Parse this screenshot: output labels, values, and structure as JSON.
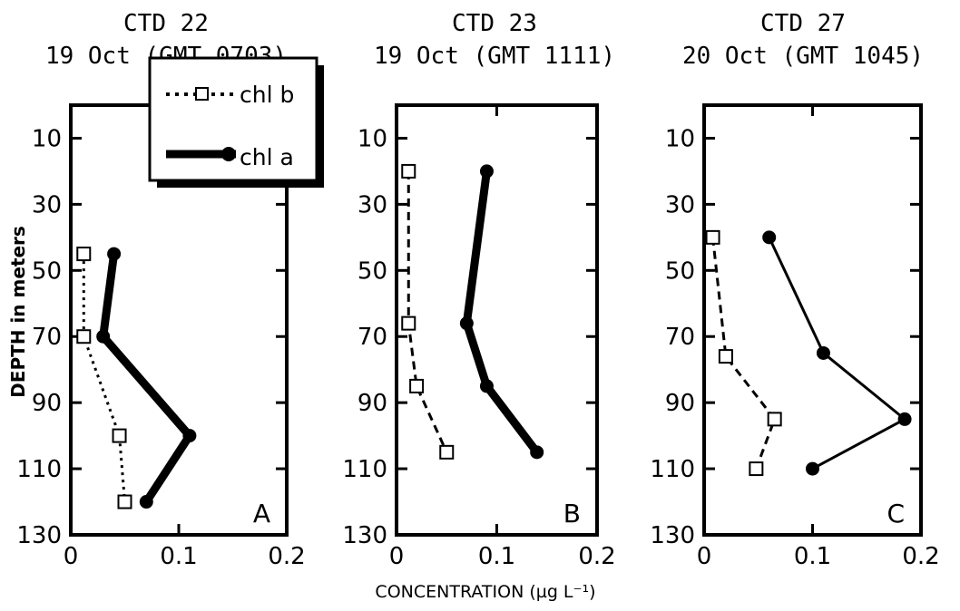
{
  "figure": {
    "ylabel": "DEPTH in meters",
    "xlabel": "CONCENTRATION  (µg L⁻¹)"
  },
  "legend": {
    "items": [
      {
        "label": "chl b",
        "style": "dotted-square"
      },
      {
        "label": "chl a",
        "style": "thick-circle"
      }
    ]
  },
  "chart_data": [
    {
      "type": "line",
      "panel_label": "A",
      "title": [
        "CTD 22",
        "19 Oct (GMT 0703)"
      ],
      "xlim": [
        0,
        0.2
      ],
      "ylim": [
        130,
        0
      ],
      "xticks": [
        "0",
        "0.1",
        "0.2"
      ],
      "yticks": [
        "10",
        "30",
        "50",
        "70",
        "90",
        "110",
        "130"
      ],
      "series": [
        {
          "name": "chl b",
          "x": [
            0.012,
            0.012,
            0.045,
            0.05
          ],
          "y": [
            45,
            70,
            100,
            120
          ]
        },
        {
          "name": "chl a",
          "x": [
            0.04,
            0.03,
            0.11,
            0.07
          ],
          "y": [
            45,
            70,
            100,
            120
          ]
        }
      ]
    },
    {
      "type": "line",
      "panel_label": "B",
      "title": [
        "CTD 23",
        "19 Oct (GMT 1111)"
      ],
      "xlim": [
        0,
        0.2
      ],
      "ylim": [
        130,
        0
      ],
      "xticks": [
        "0",
        "0.1",
        "0.2"
      ],
      "yticks": [
        "10",
        "30",
        "50",
        "70",
        "90",
        "110",
        "130"
      ],
      "series": [
        {
          "name": "chl b",
          "x": [
            0.012,
            0.012,
            0.02,
            0.05
          ],
          "y": [
            20,
            66,
            85,
            105
          ]
        },
        {
          "name": "chl a",
          "x": [
            0.09,
            0.07,
            0.09,
            0.14
          ],
          "y": [
            20,
            66,
            85,
            105
          ]
        }
      ]
    },
    {
      "type": "line",
      "panel_label": "C",
      "title": [
        "CTD 27",
        "20 Oct (GMT 1045)"
      ],
      "xlim": [
        0,
        0.2
      ],
      "ylim": [
        130,
        0
      ],
      "xticks": [
        "0",
        "0.1",
        "0.2"
      ],
      "yticks": [
        "10",
        "30",
        "50",
        "70",
        "90",
        "110",
        "130"
      ],
      "series": [
        {
          "name": "chl b",
          "x": [
            0.008,
            0.02,
            0.065,
            0.048
          ],
          "y": [
            40,
            76,
            95,
            110
          ]
        },
        {
          "name": "chl a",
          "x": [
            0.06,
            0.11,
            0.185,
            0.1
          ],
          "y": [
            40,
            75,
            95,
            110
          ]
        }
      ]
    }
  ]
}
